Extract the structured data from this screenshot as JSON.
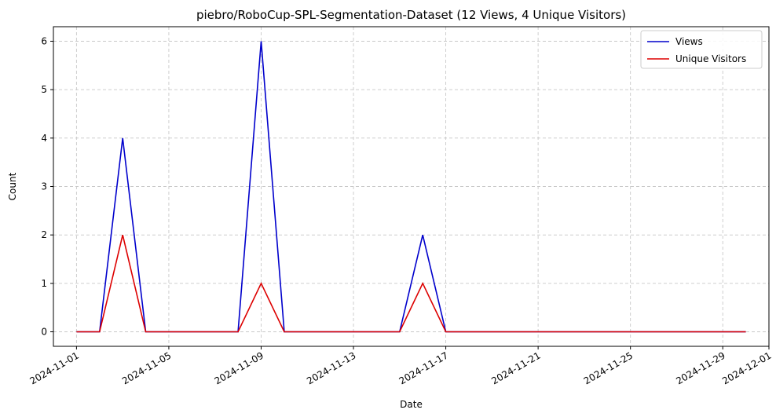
{
  "chart_data": {
    "type": "line",
    "title": "piebro/RoboCup-SPL-Segmentation-Dataset (12 Views, 4 Unique Visitors)",
    "xlabel": "Date",
    "ylabel": "Count",
    "x": [
      "2024-11-01",
      "2024-11-02",
      "2024-11-03",
      "2024-11-04",
      "2024-11-05",
      "2024-11-06",
      "2024-11-07",
      "2024-11-08",
      "2024-11-09",
      "2024-11-10",
      "2024-11-11",
      "2024-11-12",
      "2024-11-13",
      "2024-11-14",
      "2024-11-15",
      "2024-11-16",
      "2024-11-17",
      "2024-11-18",
      "2024-11-19",
      "2024-11-20",
      "2024-11-21",
      "2024-11-22",
      "2024-11-23",
      "2024-11-24",
      "2024-11-25",
      "2024-11-26",
      "2024-11-27",
      "2024-11-28",
      "2024-11-29",
      "2024-11-30"
    ],
    "series": [
      {
        "name": "Views",
        "color": "#0000cc",
        "values": [
          0,
          0,
          4,
          0,
          0,
          0,
          0,
          0,
          6,
          0,
          0,
          0,
          0,
          0,
          0,
          2,
          0,
          0,
          0,
          0,
          0,
          0,
          0,
          0,
          0,
          0,
          0,
          0,
          0,
          0
        ]
      },
      {
        "name": "Unique Visitors",
        "color": "#dd0000",
        "values": [
          0,
          0,
          2,
          0,
          0,
          0,
          0,
          0,
          1,
          0,
          0,
          0,
          0,
          0,
          0,
          1,
          0,
          0,
          0,
          0,
          0,
          0,
          0,
          0,
          0,
          0,
          0,
          0,
          0,
          0
        ]
      }
    ],
    "xlim": [
      "2024-10-31",
      "2024-12-01"
    ],
    "ylim": [
      -0.3,
      6.3
    ],
    "xticks": [
      "2024-11-01",
      "2024-11-05",
      "2024-11-09",
      "2024-11-13",
      "2024-11-17",
      "2024-11-21",
      "2024-11-25",
      "2024-11-29",
      "2024-12-01"
    ],
    "yticks": [
      0,
      1,
      2,
      3,
      4,
      5,
      6
    ],
    "grid": true,
    "legend": "top-right"
  }
}
